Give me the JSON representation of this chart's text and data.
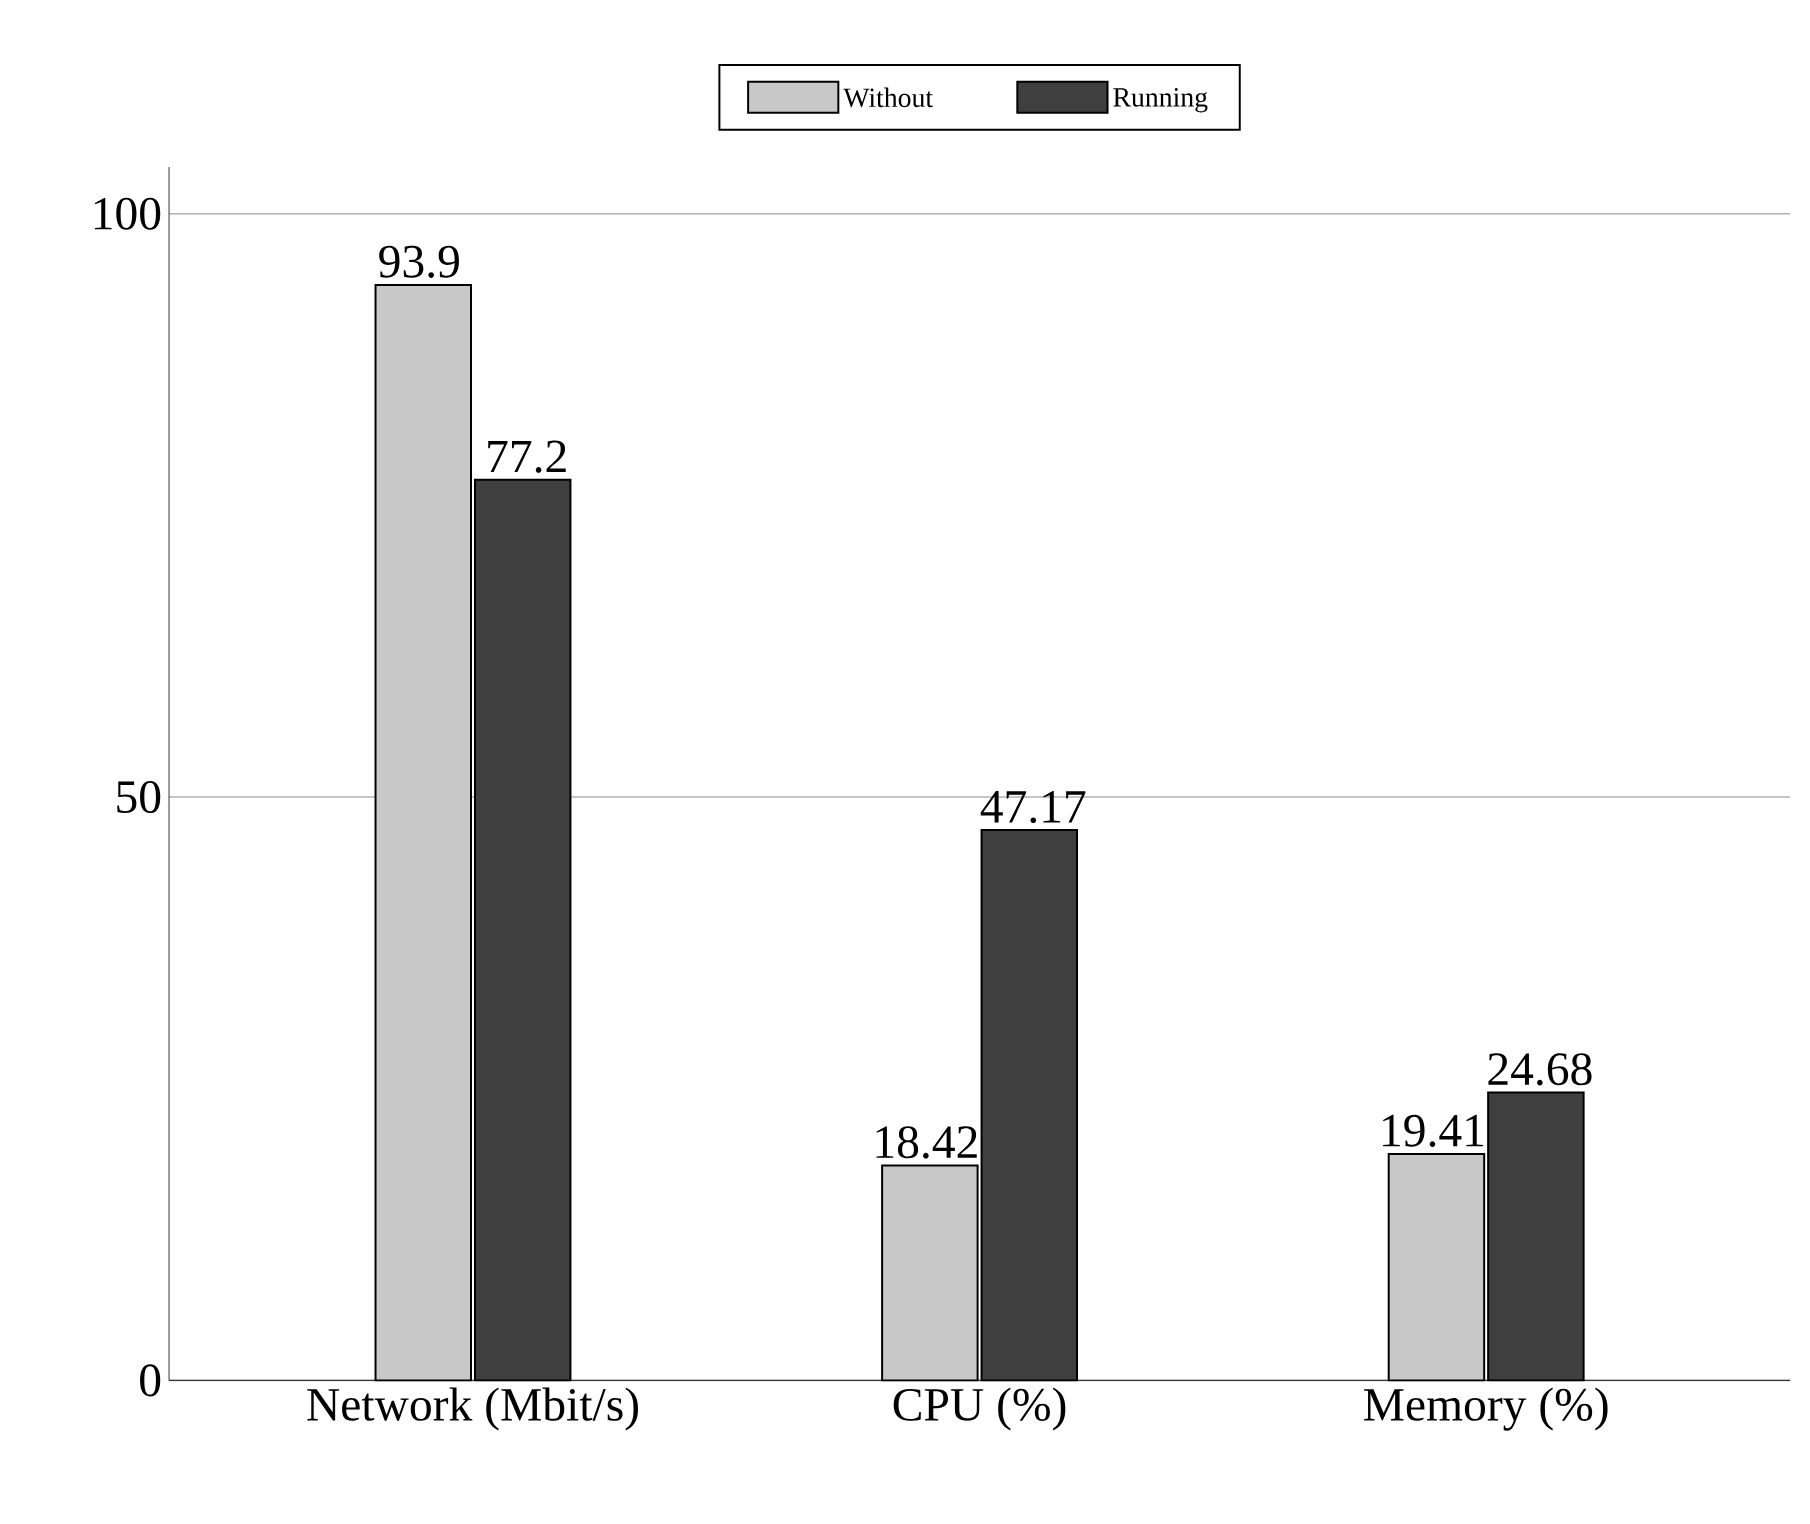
{
  "chart_data": {
    "type": "bar",
    "categories": [
      "Network (Mbit/s)",
      "CPU (%)",
      "Memory (%)"
    ],
    "series": [
      {
        "name": "Without",
        "color": "#c8c8c8",
        "values": [
          93.9,
          18.42,
          19.41
        ]
      },
      {
        "name": "Running",
        "color": "#3f3f3f",
        "values": [
          77.2,
          47.17,
          24.68
        ]
      }
    ],
    "ylim": [
      0,
      104
    ],
    "yticks": [
      0,
      50,
      100
    ],
    "grid": "y",
    "legend": "top",
    "data_labels": true
  }
}
